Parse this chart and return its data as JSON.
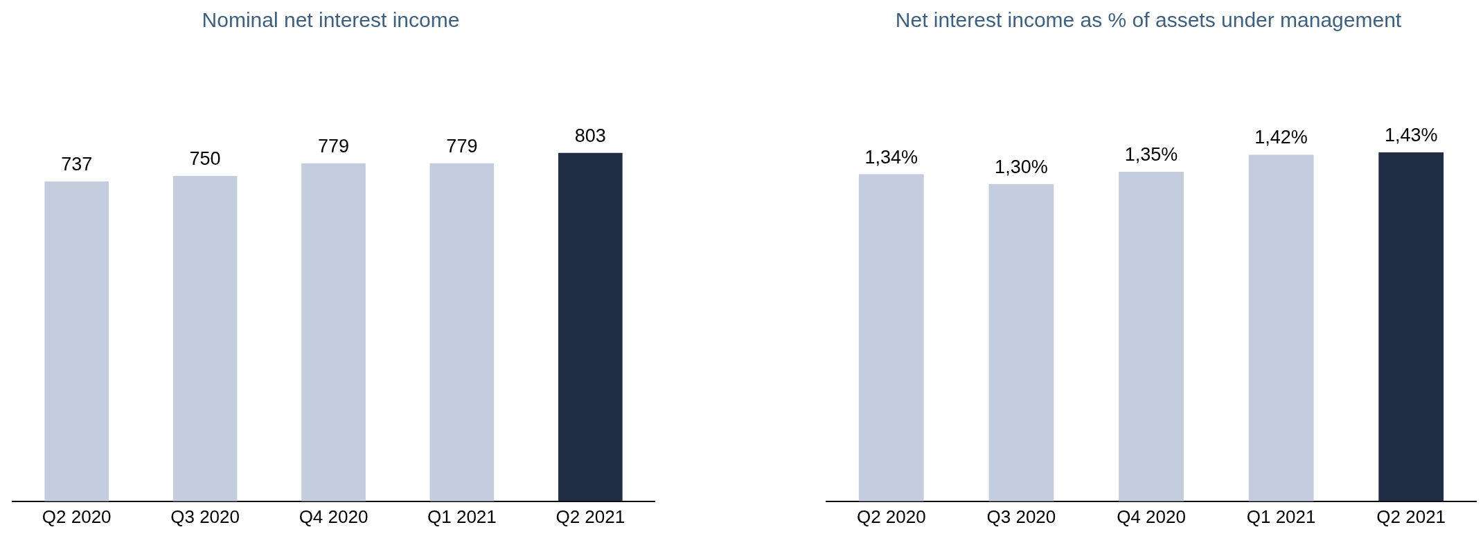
{
  "chart_data": [
    {
      "type": "bar",
      "title": "Nominal net interest income",
      "categories": [
        "Q2 2020",
        "Q3 2020",
        "Q4 2020",
        "Q1 2021",
        "Q2 2021"
      ],
      "values": [
        737,
        750,
        779,
        779,
        803
      ],
      "colors": [
        "#c3cddd",
        "#c3cddd",
        "#c3cddd",
        "#c3cddd",
        "#212d45"
      ],
      "data_labels": true,
      "relative": false,
      "grid": false,
      "legend": false
    },
    {
      "type": "bar",
      "title": "Net interest income as % of assets under management",
      "categories": [
        "Q2 2020",
        "Q3 2020",
        "Q4 2020",
        "Q1 2021",
        "Q2 2021"
      ],
      "values": [
        1.34,
        1.3,
        1.35,
        1.42,
        1.43
      ],
      "value_labels": [
        "1,34%",
        "1,30%",
        "1,35%",
        "1,42%",
        "1,43%"
      ],
      "colors": [
        "#c3cddd",
        "#c3cddd",
        "#c3cddd",
        "#c3cddd",
        "#212d45"
      ],
      "relative": false,
      "grid": false,
      "legend": false
    }
  ]
}
